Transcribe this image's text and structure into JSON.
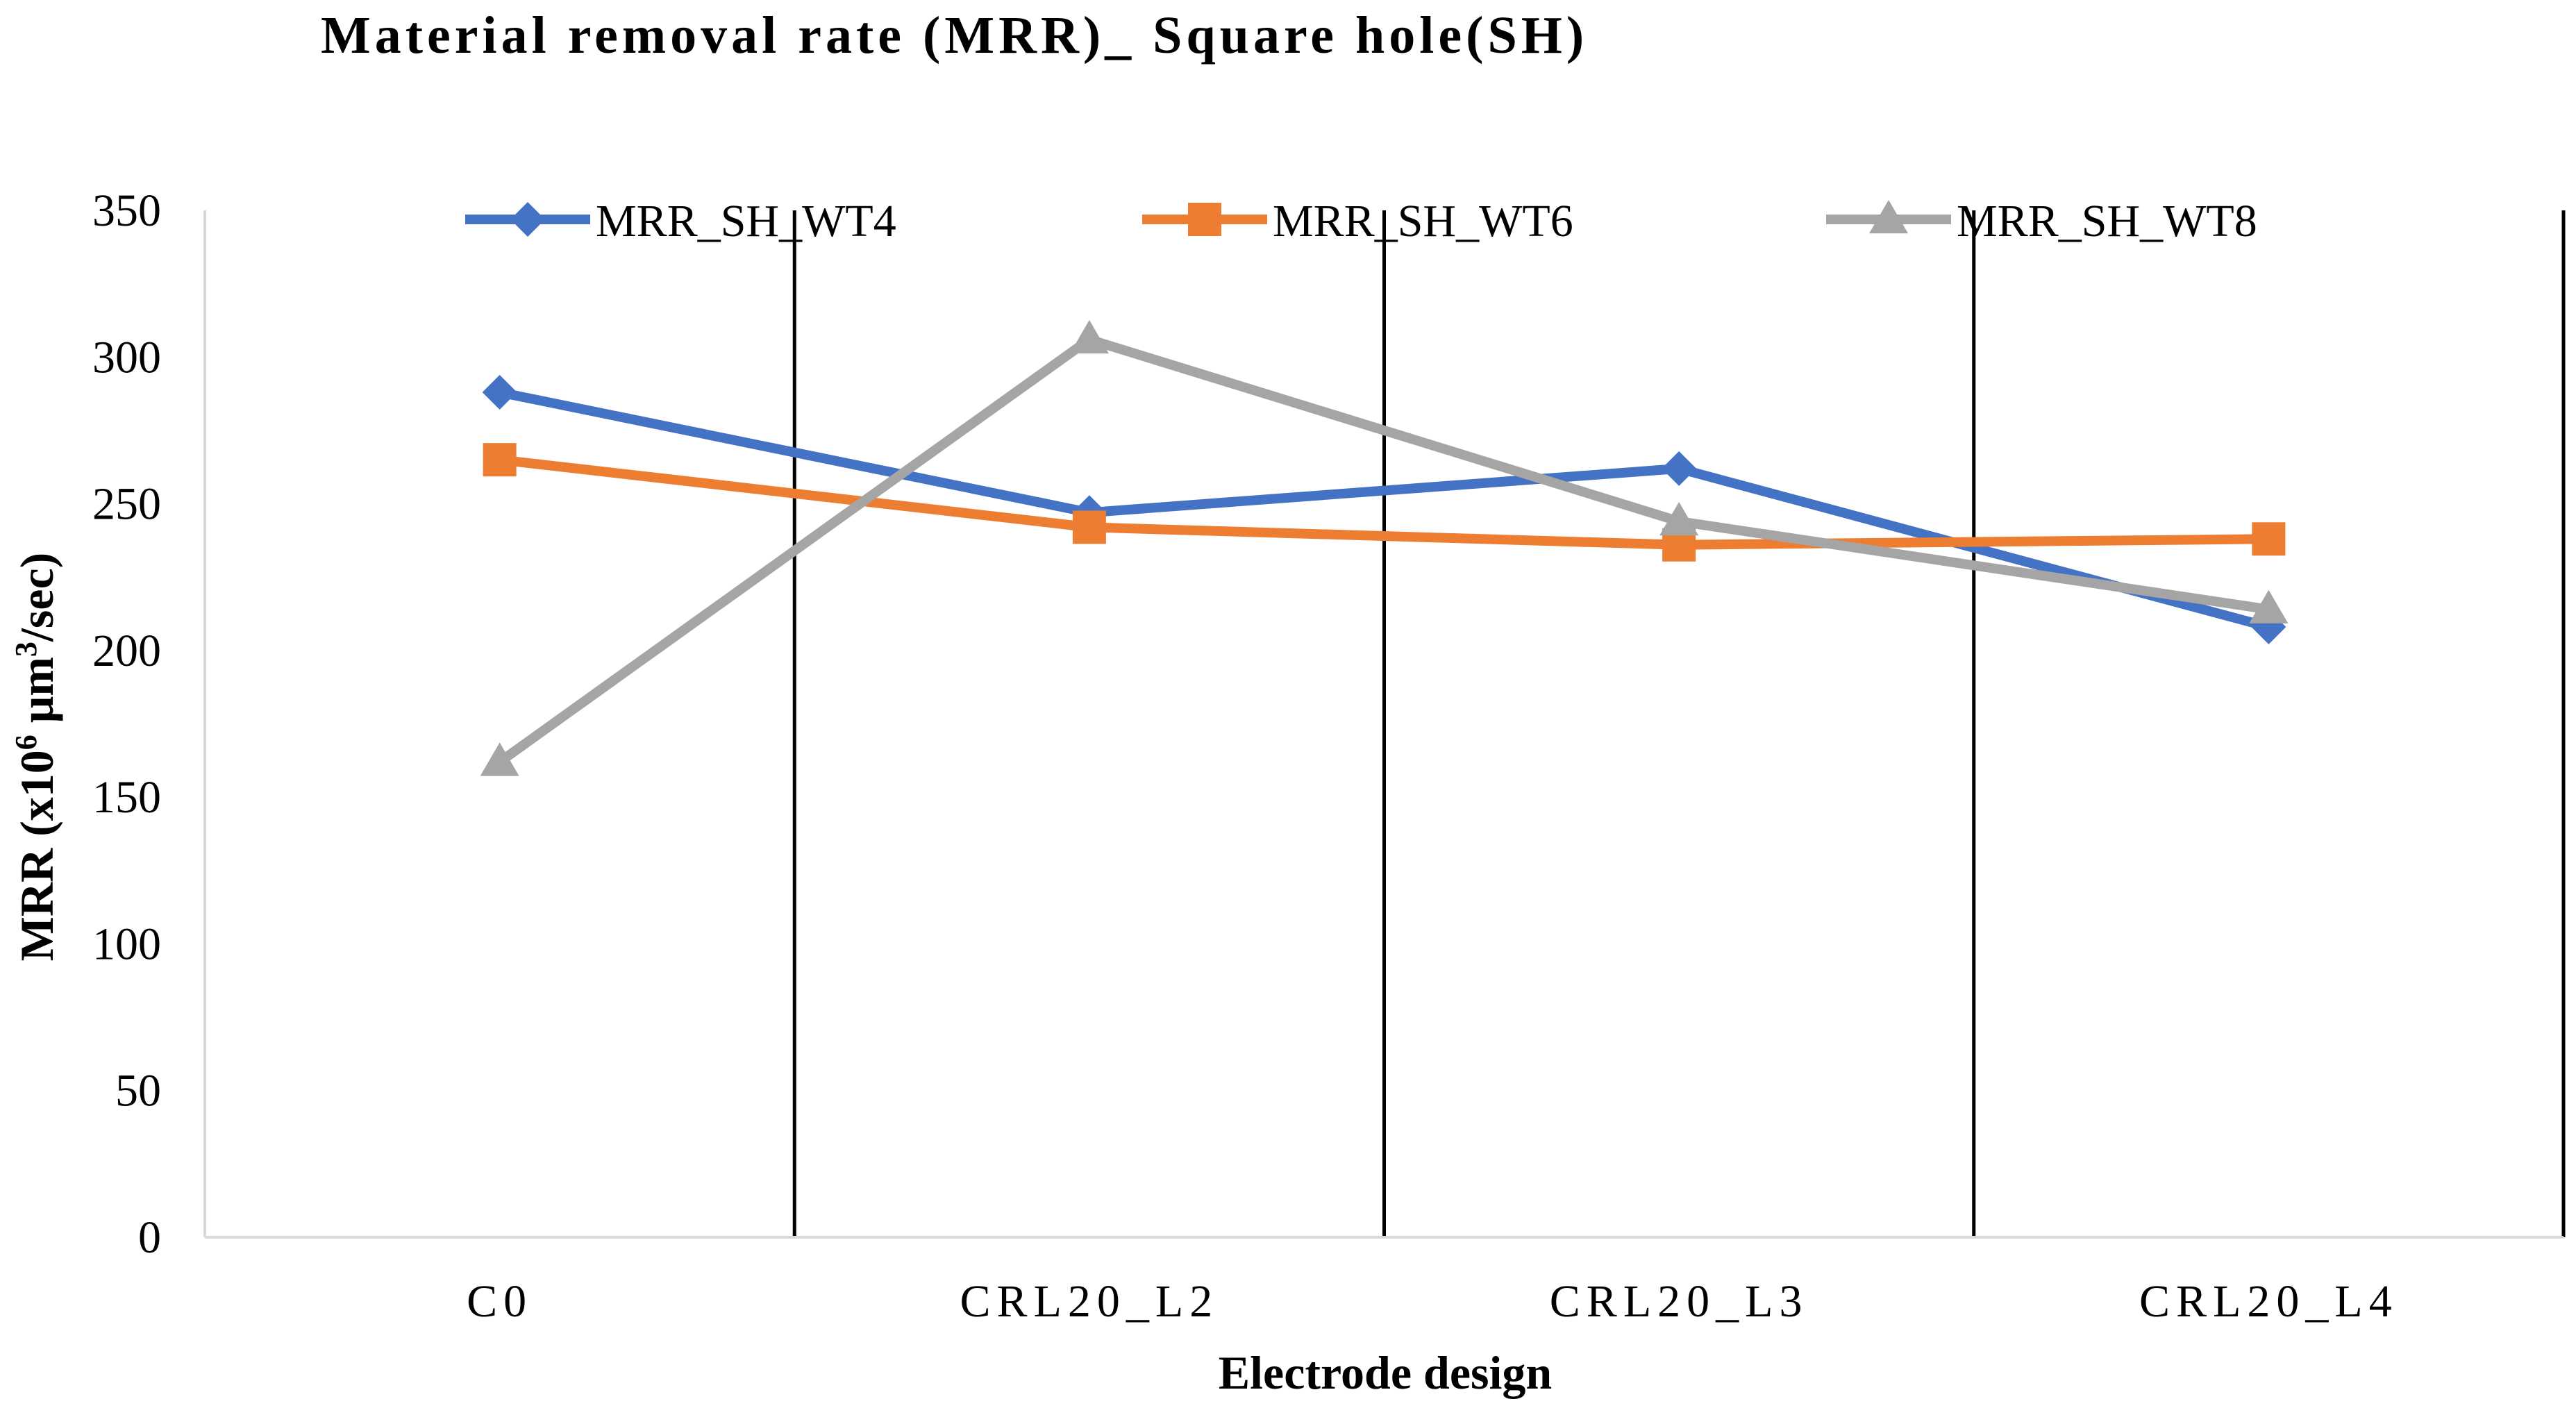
{
  "chart_data": {
    "type": "line",
    "title": "Material removal rate (MRR)_ Square hole(SH)",
    "xlabel": "Electrode design",
    "ylabel_main": "MRR (x10",
    "ylabel_sup1": "6",
    "ylabel_mid": " μm",
    "ylabel_sup2": "3",
    "ylabel_end": "/sec)",
    "categories": [
      "C0",
      "CRL20_L2",
      "CRL20_L3",
      "CRL20_L4"
    ],
    "ylim": [
      0,
      350
    ],
    "yticks": [
      0,
      50,
      100,
      150,
      200,
      250,
      300,
      350
    ],
    "legend_position": "top",
    "series": [
      {
        "name": "MRR_SH_WT4",
        "color": "#4472C4",
        "marker": "diamond",
        "values": [
          288,
          247,
          262,
          208
        ]
      },
      {
        "name": "MRR_SH_WT6",
        "color": "#ED7D31",
        "marker": "square",
        "values": [
          265,
          242,
          236,
          238
        ]
      },
      {
        "name": "MRR_SH_WT8",
        "color": "#A5A5A5",
        "marker": "triangle",
        "values": [
          162,
          306,
          244,
          214
        ]
      }
    ]
  }
}
